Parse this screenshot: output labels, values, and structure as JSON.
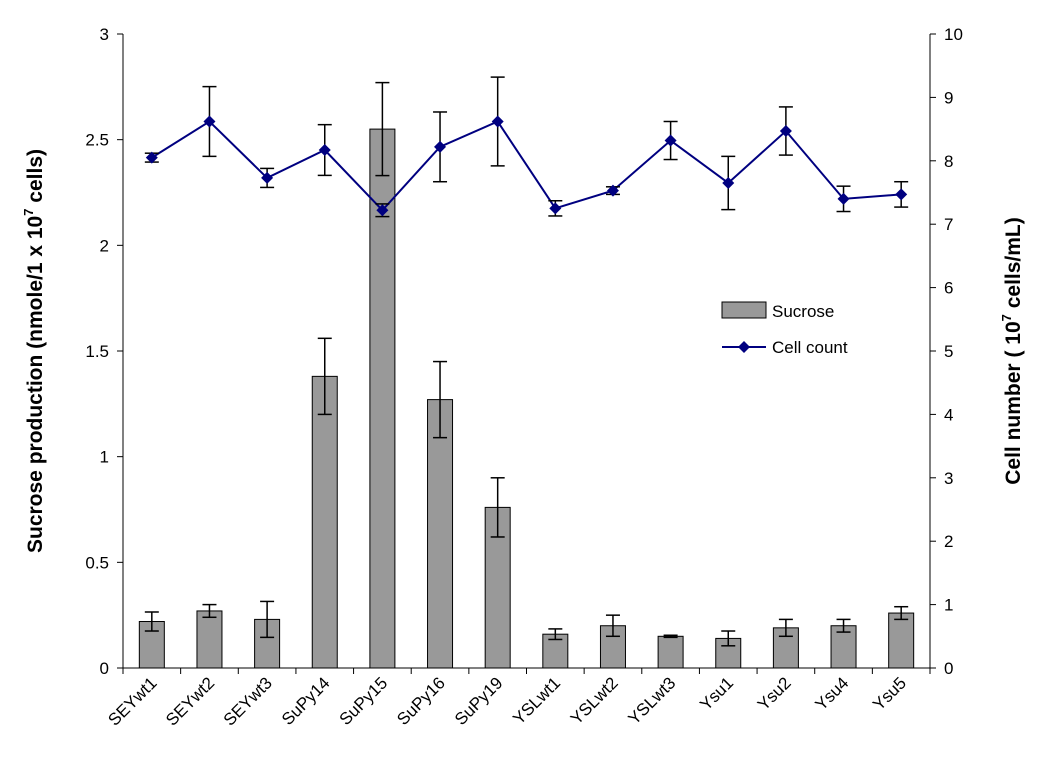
{
  "chart_data": {
    "type": "bar+line",
    "categories": [
      "SEYwt1",
      "SEYwt2",
      "SEYwt3",
      "SuPy14",
      "SuPy15",
      "SuPy16",
      "SuPy19",
      "YSLwt1",
      "YSLwt2",
      "YSLwt3",
      "Ysu1",
      "Ysu2",
      "Ysu4",
      "Ysu5"
    ],
    "left_axis": {
      "label_main": "Sucrose production (nmole/1 x 10",
      "label_sup": "7",
      "label_end": " cells)",
      "min": 0,
      "max": 3,
      "step": 0.5,
      "tick_labels": [
        "0",
        "0.5",
        "1",
        "1.5",
        "2",
        "2.5",
        "3"
      ]
    },
    "right_axis": {
      "label_main": "Cell number ( 10",
      "label_sup": "7",
      "label_end": " cells/mL)",
      "min": 0,
      "max": 10,
      "step": 1,
      "tick_labels": [
        "0",
        "1",
        "2",
        "3",
        "4",
        "5",
        "6",
        "7",
        "8",
        "9",
        "10"
      ]
    },
    "series": [
      {
        "name": "Sucrose",
        "type": "bar",
        "axis": "left",
        "color": "#999999",
        "values": [
          0.22,
          0.27,
          0.23,
          1.38,
          2.55,
          1.27,
          0.76,
          0.16,
          0.2,
          0.15,
          0.14,
          0.19,
          0.2,
          0.26
        ],
        "errors": [
          0.045,
          0.03,
          0.085,
          0.18,
          0.22,
          0.18,
          0.14,
          0.025,
          0.05,
          0.005,
          0.035,
          0.04,
          0.03,
          0.03
        ]
      },
      {
        "name": "Cell count",
        "type": "line",
        "axis": "right",
        "color": "#000080",
        "values": [
          8.05,
          8.62,
          7.73,
          8.17,
          7.22,
          8.22,
          8.62,
          7.25,
          7.53,
          8.32,
          7.65,
          8.47,
          7.4,
          7.47
        ],
        "errors": [
          0.07,
          0.55,
          0.15,
          0.4,
          0.1,
          0.55,
          0.7,
          0.12,
          0.06,
          0.3,
          0.42,
          0.38,
          0.2,
          0.2
        ]
      }
    ],
    "legend": {
      "position": "right-middle",
      "items": [
        "Sucrose",
        "Cell count"
      ]
    },
    "grid": false
  }
}
